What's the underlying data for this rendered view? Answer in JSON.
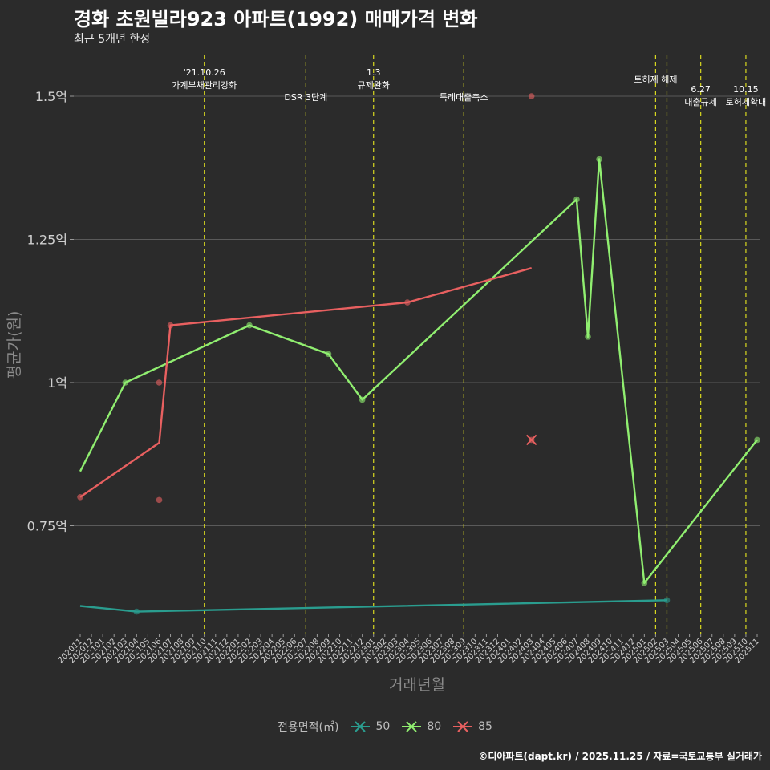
{
  "header": {
    "title": "경화 초원빌라923 아파트(1992) 매매가격 변화",
    "subtitle": "최근 5개년 한정"
  },
  "footer": {
    "caption": "©디아파트(dapt.kr) / 2025.11.25 / 자료=국토교통부 실거래가"
  },
  "legend": {
    "title": "전용면적(㎡)",
    "items": [
      {
        "label": "50",
        "color": "#2a9d8f"
      },
      {
        "label": "80",
        "color": "#90ee70"
      },
      {
        "label": "85",
        "color": "#e86060"
      }
    ]
  },
  "chart_data": {
    "type": "line",
    "title": "경화 초원빌라923 아파트(1992) 매매가격 변화",
    "xlabel": "거래년월",
    "ylabel": "평균가(원)",
    "ylim": [
      0.55,
      1.58
    ],
    "yticks": [
      {
        "value": 0.75,
        "label": "0.75억"
      },
      {
        "value": 1.0,
        "label": "1억"
      },
      {
        "value": 1.25,
        "label": "1.25억"
      },
      {
        "value": 1.5,
        "label": "1.5억"
      }
    ],
    "x_categories": [
      "202011",
      "202012",
      "202101",
      "202102",
      "202103",
      "202104",
      "202105",
      "202106",
      "202107",
      "202108",
      "202109",
      "202110",
      "202111",
      "202112",
      "202201",
      "202202",
      "202203",
      "202204",
      "202205",
      "202206",
      "202207",
      "202208",
      "202209",
      "202210",
      "202211",
      "202212",
      "202301",
      "202302",
      "202303",
      "202304",
      "202305",
      "202306",
      "202307",
      "202308",
      "202309",
      "202310",
      "202311",
      "202312",
      "202401",
      "202402",
      "202403",
      "202404",
      "202405",
      "202406",
      "202407",
      "202408",
      "202409",
      "202410",
      "202411",
      "202412",
      "202501",
      "202502",
      "202503",
      "202504",
      "202505",
      "202506",
      "202507",
      "202508",
      "202509",
      "202510",
      "202511"
    ],
    "series": [
      {
        "name": "50",
        "color": "#2a9d8f",
        "line": [
          {
            "x": "202011",
            "y": 0.61
          },
          {
            "x": "202104",
            "y": 0.6
          },
          {
            "x": "202503",
            "y": 0.62
          }
        ],
        "points": [
          {
            "x": "202104",
            "y": 0.6
          },
          {
            "x": "202503",
            "y": 0.62
          }
        ]
      },
      {
        "name": "80",
        "color": "#90ee70",
        "line": [
          {
            "x": "202011",
            "y": 0.845
          },
          {
            "x": "202103",
            "y": 1.0
          },
          {
            "x": "202202",
            "y": 1.1
          },
          {
            "x": "202209",
            "y": 1.05
          },
          {
            "x": "202212",
            "y": 0.97
          },
          {
            "x": "202407",
            "y": 1.32
          },
          {
            "x": "202408",
            "y": 1.08
          },
          {
            "x": "202409",
            "y": 1.39
          },
          {
            "x": "202501",
            "y": 0.65
          },
          {
            "x": "202511",
            "y": 0.9
          }
        ],
        "points": [
          {
            "x": "202103",
            "y": 1.0
          },
          {
            "x": "202202",
            "y": 1.1
          },
          {
            "x": "202209",
            "y": 1.05
          },
          {
            "x": "202212",
            "y": 0.97
          },
          {
            "x": "202407",
            "y": 1.32
          },
          {
            "x": "202408",
            "y": 1.08
          },
          {
            "x": "202409",
            "y": 1.39
          },
          {
            "x": "202501",
            "y": 0.65
          },
          {
            "x": "202511",
            "y": 0.9
          }
        ]
      },
      {
        "name": "85",
        "color": "#e86060",
        "line": [
          {
            "x": "202011",
            "y": 0.8
          },
          {
            "x": "202106",
            "y": 0.895
          },
          {
            "x": "202107",
            "y": 1.1
          },
          {
            "x": "202304",
            "y": 1.14
          },
          {
            "x": "202403",
            "y": 1.2
          }
        ],
        "points": [
          {
            "x": "202011",
            "y": 0.8
          },
          {
            "x": "202106",
            "y": 1.0
          },
          {
            "x": "202106",
            "y": 0.795
          },
          {
            "x": "202107",
            "y": 1.1
          },
          {
            "x": "202304",
            "y": 1.14
          },
          {
            "x": "202403",
            "y": 1.5
          },
          {
            "x": "202403",
            "y": 0.9
          }
        ],
        "cross": [
          {
            "x": "202403",
            "y": 0.9
          }
        ]
      }
    ],
    "events": [
      {
        "x": "202110",
        "lines": [
          "'21.10.26",
          "가계부채관리강화"
        ],
        "level": "top"
      },
      {
        "x": "202207",
        "lines": [
          "DSR 3단계"
        ],
        "level": "low"
      },
      {
        "x": "202301",
        "lines": [
          "1.3",
          "규제완화"
        ],
        "level": "top"
      },
      {
        "x": "202309",
        "lines": [
          "특례대출축소"
        ],
        "level": "low"
      },
      {
        "x": "202502",
        "lines": [
          "토허제 해제"
        ],
        "level": "mid"
      },
      {
        "x": "202503",
        "lines": [],
        "level": "none"
      },
      {
        "x": "202506",
        "lines": [
          "6.27",
          "대출규제"
        ],
        "level": "right"
      },
      {
        "x": "202510",
        "lines": [
          "10.15",
          "토허제확대"
        ],
        "level": "right"
      }
    ]
  }
}
